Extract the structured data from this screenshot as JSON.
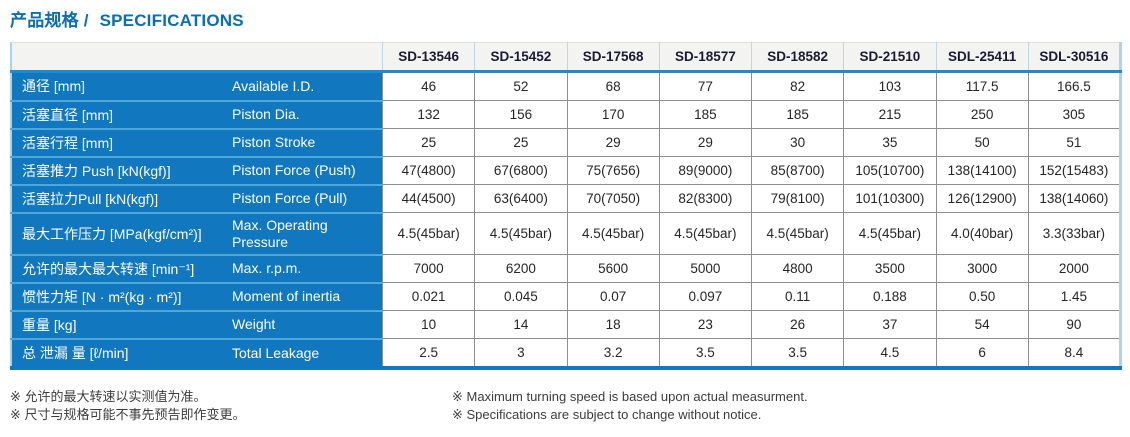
{
  "title": {
    "zh": "产品规格 /",
    "en": "SPECIFICATIONS"
  },
  "table": {
    "corner_label": "",
    "columns": [
      "SD-13546",
      "SD-15452",
      "SD-17568",
      "SD-18577",
      "SD-18582",
      "SD-21510",
      "SDL-25411",
      "SDL-30516"
    ],
    "rows": [
      {
        "zh": "通径 [mm]",
        "en": "Available I.D.",
        "tall": false,
        "values": [
          "46",
          "52",
          "68",
          "77",
          "82",
          "103",
          "117.5",
          "166.5"
        ]
      },
      {
        "zh": "活塞直径 [mm]",
        "en": "Piston Dia.",
        "tall": false,
        "values": [
          "132",
          "156",
          "170",
          "185",
          "185",
          "215",
          "250",
          "305"
        ]
      },
      {
        "zh": "活塞行程 [mm]",
        "en": "Piston Stroke",
        "tall": false,
        "values": [
          "25",
          "25",
          "29",
          "29",
          "30",
          "35",
          "50",
          "51"
        ]
      },
      {
        "zh": "活塞推力 Push [kN(kgf)]",
        "en": "Piston Force (Push)",
        "tall": false,
        "values": [
          "47(4800)",
          "67(6800)",
          "75(7656)",
          "89(9000)",
          "85(8700)",
          "105(10700)",
          "138(14100)",
          "152(15483)"
        ]
      },
      {
        "zh": "活塞拉力Pull [kN(kgf)]",
        "en": "Piston Force (Pull)",
        "tall": false,
        "values": [
          "44(4500)",
          "63(6400)",
          "70(7050)",
          "82(8300)",
          "79(8100)",
          "101(10300)",
          "126(12900)",
          "138(14060)"
        ]
      },
      {
        "zh": "最大工作压力 [MPa(kgf/cm²)]",
        "en": "Max. Operating Pressure",
        "tall": true,
        "values": [
          "4.5(45bar)",
          "4.5(45bar)",
          "4.5(45bar)",
          "4.5(45bar)",
          "4.5(45bar)",
          "4.5(45bar)",
          "4.0(40bar)",
          "3.3(33bar)"
        ]
      },
      {
        "zh": "允许的最大最大转速 [min⁻¹]",
        "en": "Max. r.p.m.",
        "tall": false,
        "values": [
          "7000",
          "6200",
          "5600",
          "5000",
          "4800",
          "3500",
          "3000",
          "2000"
        ]
      },
      {
        "zh": "惯性力矩 [N · m²(kg · m²)]",
        "en": "Moment of inertia",
        "tall": false,
        "values": [
          "0.021",
          "0.045",
          "0.07",
          "0.097",
          "0.11",
          "0.188",
          "0.50",
          "1.45"
        ]
      },
      {
        "zh": "重量 [kg]",
        "en": "Weight",
        "tall": false,
        "values": [
          "10",
          "14",
          "18",
          "23",
          "26",
          "37",
          "54",
          "90"
        ]
      },
      {
        "zh": "总 泄漏 量 [ℓ/min]",
        "en": "Total Leakage",
        "tall": false,
        "values": [
          "2.5",
          "3",
          "3.2",
          "3.5",
          "3.5",
          "4.5",
          "6",
          "8.4"
        ]
      }
    ]
  },
  "notes": {
    "zh": [
      "※ 允许的最大转速以实测值为准。",
      "※ 尺寸与规格可能不事先预告即作变更。"
    ],
    "en": [
      "※ Maximum turning speed is based upon actual measurment.",
      "※ Specifications are subject to change without notice."
    ]
  },
  "colors": {
    "label_blue": "#1177be",
    "title_blue": "#0a6db6",
    "header_separator_blue": "#2389c9",
    "row_separator_blue": "#4fa8da",
    "outer_light_blue": "#a9d4ee",
    "grid_gray": "#8f8f8f",
    "header_bg": "#f3f3f1",
    "header_text": "#1b1b2f",
    "body_text": "#262626",
    "note_text": "#3c3c3c"
  }
}
